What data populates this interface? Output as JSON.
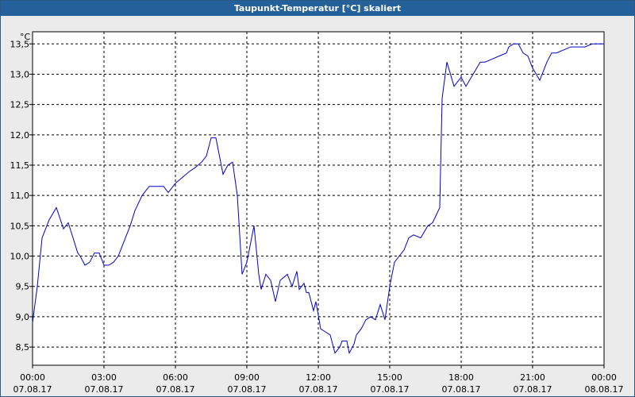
{
  "window": {
    "title": "Taupunkt-Temperatur [°C] skaliert"
  },
  "colors": {
    "titlebar": "#24609a",
    "background": "#ebebeb",
    "plot_bg": "#ffffff",
    "line": "#0000cc",
    "grid": "#000000"
  },
  "chart_data": {
    "type": "line",
    "title": "Taupunkt-Temperatur [°C] skaliert",
    "ylabel": "°C",
    "xlabel": "",
    "ylim": [
      8.2,
      13.7
    ],
    "xlim": [
      0,
      24
    ],
    "grid": true,
    "y_ticks": [
      "13,5",
      "13,0",
      "12,5",
      "12,0",
      "11,5",
      "11,0",
      "10,5",
      "10,0",
      "9,5",
      "9,0",
      "8,5"
    ],
    "y_tick_values": [
      13.5,
      13.0,
      12.5,
      12.0,
      11.5,
      11.0,
      10.5,
      10.0,
      9.5,
      9.0,
      8.5
    ],
    "x_ticks": [
      {
        "time": "00:00",
        "date": "07.08.17"
      },
      {
        "time": "03:00",
        "date": "07.08.17"
      },
      {
        "time": "06:00",
        "date": "07.08.17"
      },
      {
        "time": "09:00",
        "date": "07.08.17"
      },
      {
        "time": "12:00",
        "date": "07.08.17"
      },
      {
        "time": "15:00",
        "date": "07.08.17"
      },
      {
        "time": "18:00",
        "date": "07.08.17"
      },
      {
        "time": "21:00",
        "date": "07.08.17"
      },
      {
        "time": "00:00",
        "date": "08.08.17"
      }
    ],
    "series": [
      {
        "x": [
          0.0,
          0.2,
          0.4,
          0.7,
          1.0,
          1.3,
          1.5,
          1.7,
          1.9,
          2.0,
          2.2,
          2.4,
          2.6,
          2.8,
          3.0,
          3.2,
          3.4,
          3.6,
          3.7,
          3.9,
          4.1,
          4.3,
          4.6,
          4.9,
          5.2,
          5.5,
          5.7,
          6.0,
          6.3,
          6.6,
          6.8,
          7.1,
          7.3,
          7.5,
          7.7,
          8.0,
          8.2,
          8.4,
          8.6,
          8.8,
          9.0,
          9.3,
          9.5,
          9.6,
          9.8,
          10.0,
          10.2,
          10.4,
          10.7,
          10.9,
          11.1,
          11.2,
          11.4,
          11.5,
          11.6,
          11.8,
          11.9,
          12.1,
          12.3,
          12.5,
          12.7,
          12.9,
          13.0,
          13.2,
          13.3,
          13.5,
          13.6,
          13.8,
          14.0,
          14.2,
          14.4,
          14.6,
          14.8,
          15.0,
          15.2,
          15.4,
          15.6,
          15.8,
          16.0,
          16.3,
          16.6,
          16.8,
          17.1,
          17.2,
          17.4,
          17.7,
          18.0,
          18.2,
          18.5,
          18.8,
          19.0,
          19.3,
          19.6,
          19.9,
          20.0,
          20.2,
          20.4,
          20.6,
          20.8,
          21.0,
          21.3,
          21.6,
          21.8,
          22.0,
          22.3,
          22.6,
          22.9,
          23.2,
          23.5,
          23.7,
          24.0
        ],
        "values": [
          8.9,
          9.5,
          10.3,
          10.6,
          10.8,
          10.45,
          10.55,
          10.3,
          10.05,
          10.0,
          9.85,
          9.9,
          10.05,
          10.05,
          9.85,
          9.85,
          9.9,
          10.0,
          10.1,
          10.3,
          10.5,
          10.75,
          11.0,
          11.15,
          11.15,
          11.15,
          11.05,
          11.2,
          11.3,
          11.4,
          11.45,
          11.55,
          11.65,
          11.95,
          11.95,
          11.35,
          11.5,
          11.55,
          11.0,
          9.7,
          9.9,
          10.5,
          9.7,
          9.45,
          9.7,
          9.6,
          9.25,
          9.6,
          9.7,
          9.5,
          9.75,
          9.45,
          9.55,
          9.4,
          9.4,
          9.1,
          9.25,
          8.8,
          8.75,
          8.7,
          8.4,
          8.5,
          8.6,
          8.6,
          8.4,
          8.55,
          8.7,
          8.8,
          8.95,
          9.0,
          8.95,
          9.2,
          8.95,
          9.5,
          9.9,
          10.0,
          10.1,
          10.3,
          10.35,
          10.3,
          10.5,
          10.55,
          10.8,
          12.6,
          13.2,
          12.8,
          12.95,
          12.8,
          13.0,
          13.2,
          13.2,
          13.25,
          13.3,
          13.35,
          13.45,
          13.5,
          13.5,
          13.35,
          13.3,
          13.1,
          12.9,
          13.2,
          13.35,
          13.35,
          13.4,
          13.45,
          13.45,
          13.45,
          13.5,
          13.5,
          13.5
        ]
      }
    ]
  }
}
